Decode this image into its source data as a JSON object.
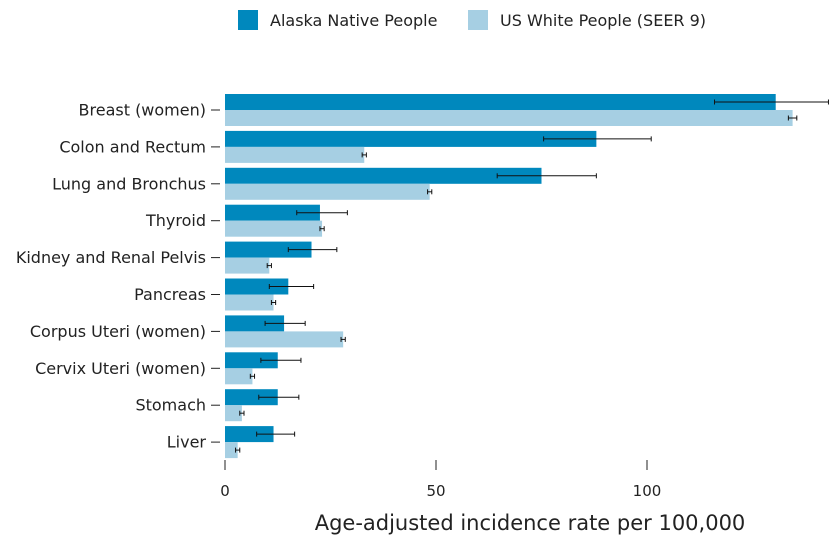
{
  "chart_data": {
    "type": "bar",
    "orientation": "horizontal",
    "xlabel": "Age-adjusted incidence rate per 100,000",
    "xlim": [
      0,
      140
    ],
    "xticks": [
      0,
      50,
      100
    ],
    "legend_position": "top",
    "categories": [
      "Breast (women)",
      "Colon and Rectum",
      "Lung and Bronchus",
      "Thyroid",
      "Kidney and Renal Pelvis",
      "Pancreas",
      "Corpus Uteri (women)",
      "Cervix Uteri (women)",
      "Stomach",
      "Liver"
    ],
    "series": [
      {
        "name": "Alaska Native People",
        "color": "#0088bd",
        "values": [
          130.5,
          88,
          75,
          22.5,
          20.5,
          15,
          14,
          12.5,
          12.5,
          11.5
        ],
        "error_low": [
          116,
          75.5,
          64.5,
          17,
          15,
          10.5,
          9.5,
          8.5,
          8,
          7.5
        ],
        "error_high": [
          143,
          101,
          88,
          29,
          26.5,
          21,
          19,
          18,
          17.5,
          16.5
        ]
      },
      {
        "name": "US White People (SEER 9)",
        "color": "#a6cfe3",
        "values": [
          134.5,
          33,
          48.5,
          23,
          10.5,
          11.5,
          28,
          6.5,
          4,
          3
        ],
        "error_low": [
          133.5,
          32.5,
          48,
          22.5,
          10,
          11,
          27.5,
          6,
          3.5,
          2.5
        ],
        "error_high": [
          135.5,
          33.5,
          49,
          23.5,
          11,
          12,
          28.5,
          7,
          4.5,
          3.5
        ]
      }
    ]
  }
}
